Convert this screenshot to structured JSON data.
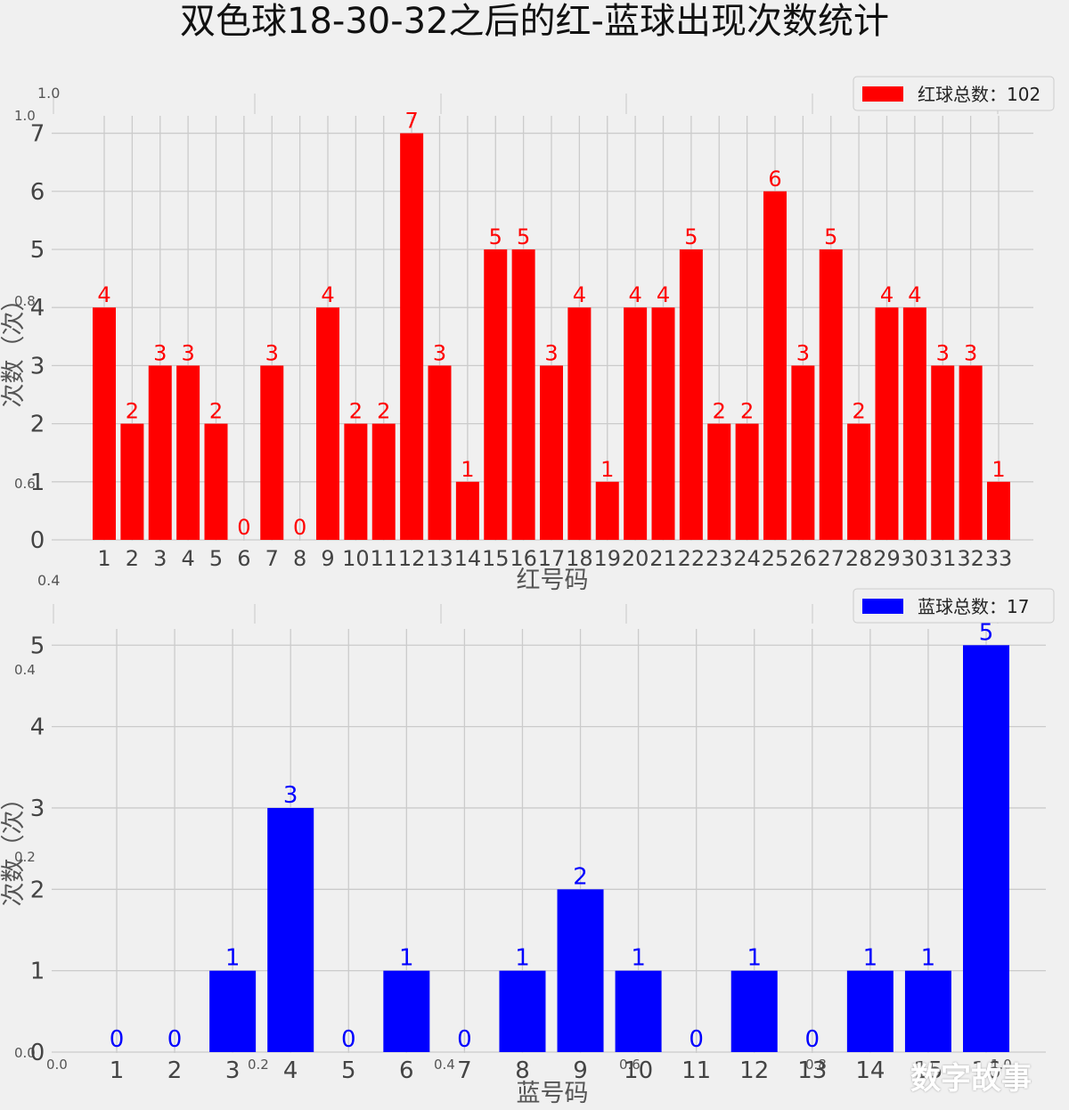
{
  "title": "双色球18-30-32之后的红-蓝球出现次数统计",
  "watermark": "数字故事",
  "chart_data": [
    {
      "type": "bar",
      "color": "#ff0000",
      "legend": "红球总数：102",
      "legend_position": "top-right",
      "xlabel": "红号码",
      "ylabel": "次数（次）",
      "ylim": [
        0,
        7.3
      ],
      "yticks": [
        0,
        1,
        2,
        3,
        4,
        5,
        6,
        7
      ],
      "grid": true,
      "categories": [
        "1",
        "2",
        "3",
        "4",
        "5",
        "6",
        "7",
        "8",
        "9",
        "10",
        "11",
        "12",
        "13",
        "14",
        "15",
        "16",
        "17",
        "18",
        "19",
        "20",
        "21",
        "22",
        "23",
        "24",
        "25",
        "26",
        "27",
        "28",
        "29",
        "30",
        "31",
        "32",
        "33"
      ],
      "values": [
        4,
        2,
        3,
        3,
        2,
        0,
        3,
        0,
        4,
        2,
        2,
        7,
        3,
        1,
        5,
        5,
        3,
        4,
        1,
        4,
        4,
        5,
        2,
        2,
        6,
        3,
        5,
        2,
        4,
        4,
        3,
        3,
        1
      ]
    },
    {
      "type": "bar",
      "color": "#0000ff",
      "legend": "蓝球总数：17",
      "legend_position": "top-right",
      "xlabel": "蓝号码",
      "ylabel": "次数（次）",
      "ylim": [
        0,
        5.2
      ],
      "yticks": [
        0,
        1,
        2,
        3,
        4,
        5
      ],
      "grid": true,
      "categories": [
        "1",
        "2",
        "3",
        "4",
        "5",
        "6",
        "7",
        "8",
        "9",
        "10",
        "11",
        "12",
        "13",
        "14",
        "15",
        "16"
      ],
      "values": [
        0,
        0,
        1,
        3,
        0,
        1,
        0,
        1,
        2,
        1,
        0,
        1,
        0,
        1,
        1,
        5
      ]
    }
  ],
  "background_axis": {
    "xticks": [
      "0.0",
      "0.2",
      "0.4",
      "0.6",
      "0.8",
      "1.0"
    ],
    "yticks": [
      "0.0",
      "0.2",
      "0.4",
      "0.6",
      "0.8",
      "1.0"
    ]
  }
}
